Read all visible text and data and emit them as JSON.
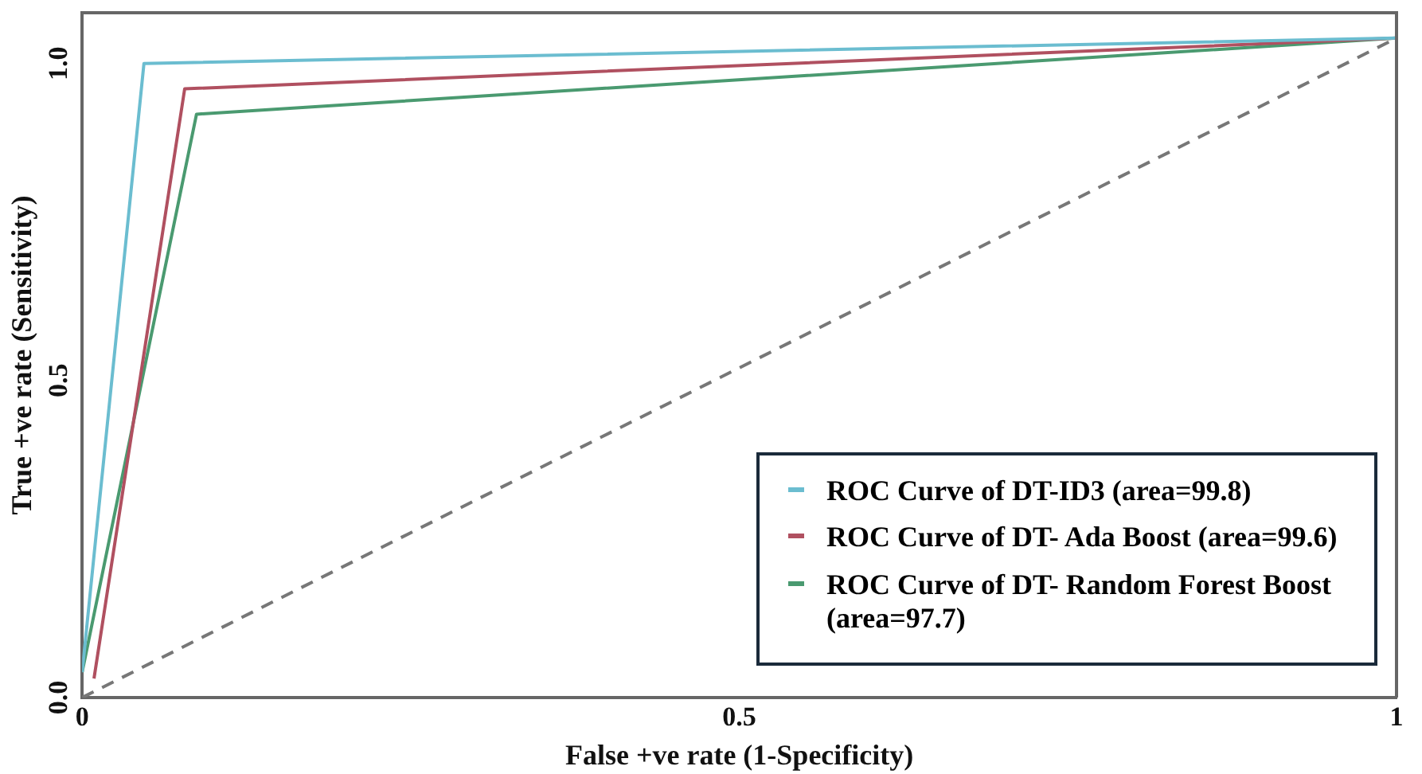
{
  "chart_data": {
    "type": "line",
    "xlabel": "False +ve rate (1-Specificity)",
    "ylabel": "True +ve rate (Sensitivity)",
    "xlim": [
      0,
      1
    ],
    "ylim": [
      0,
      1.08
    ],
    "xticks": [
      {
        "value": 0,
        "label": "0"
      },
      0.5,
      1.0
    ],
    "yticks": [
      {
        "value": 0,
        "label": "0.0"
      },
      0.5,
      {
        "value": 1,
        "label": "1.0"
      }
    ],
    "grid": false,
    "legend": "bottom right",
    "marker": "none",
    "series": [
      {
        "name": "ROC Curve of DT-ID3 (area=99.8)",
        "color": "#6bbdd0",
        "x": [
          0,
          0.047,
          1
        ],
        "values": [
          0.04,
          1.0,
          1.04
        ]
      },
      {
        "name": "ROC Curve of DT- Ada Boost (area=99.6)",
        "color": "#b05060",
        "x": [
          0.009,
          0.078,
          1
        ],
        "values": [
          0.03,
          0.96,
          1.04
        ]
      },
      {
        "name": "ROC Curve of DT- Random Forest Boost (area=97.7)",
        "color": "#4a9a70",
        "x": [
          0,
          0.087,
          1
        ],
        "values": [
          0.04,
          0.92,
          1.04
        ]
      },
      {
        "color": "#777777",
        "line_style": "dashed",
        "x": [
          0,
          1
        ],
        "values": [
          0,
          1.04
        ]
      }
    ]
  }
}
